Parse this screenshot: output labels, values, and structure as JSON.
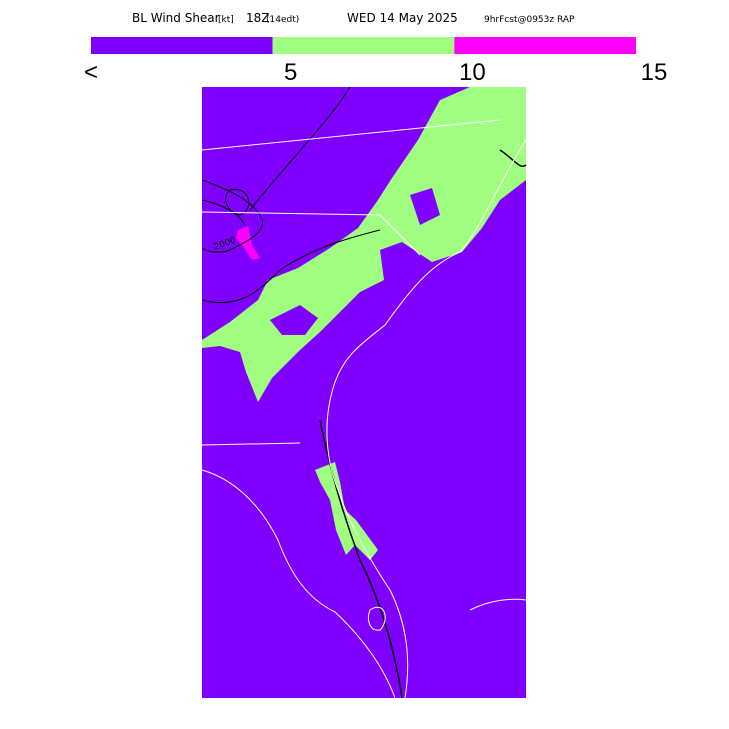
{
  "header": {
    "title": "BL Wind Shear",
    "units": "[kt]",
    "time": "18Z",
    "local_time": "(14edt)",
    "date": "WED 14 May 2025",
    "forecast": "9hrFcst@0953z RAP"
  },
  "legend": {
    "colors": [
      "#8000ff",
      "#a0ff80",
      "#ff00ff"
    ],
    "labels": [
      "<",
      5,
      10,
      15
    ]
  },
  "map": {
    "contour_label": "2000"
  }
}
